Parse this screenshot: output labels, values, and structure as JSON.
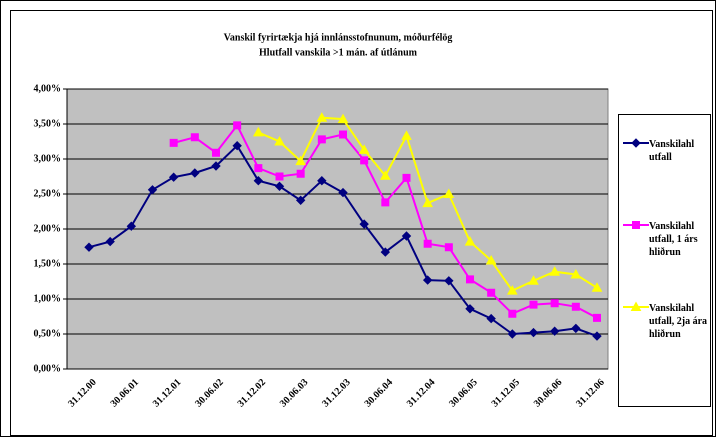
{
  "chart_data": {
    "type": "line",
    "title": "Vanskil fyrirtækja hjá innlánsstofnunum, móðurfélög",
    "subtitle": "Hlutfall vanskila >1 mán. af útlánum",
    "categories": [
      "31.12.00",
      null,
      "30.06.01",
      null,
      "31.12.01",
      null,
      "30.06.02",
      null,
      "31.12.02",
      null,
      "30.06.03",
      null,
      "31.12.03",
      null,
      "30.06.04",
      null,
      "31.12.04",
      null,
      "30.06.05",
      null,
      "31.12.05",
      null,
      "30.06.06",
      null,
      "31.12.06"
    ],
    "series": [
      {
        "name": "Vanskilahl utfall",
        "color": "#000080",
        "marker": "diamond",
        "values": [
          1.74,
          1.82,
          2.04,
          2.56,
          2.74,
          2.8,
          2.9,
          3.19,
          2.69,
          2.61,
          2.41,
          2.69,
          2.52,
          2.07,
          1.67,
          1.9,
          1.27,
          1.26,
          0.86,
          0.72,
          0.5,
          0.52,
          0.54,
          0.58,
          0.47
        ]
      },
      {
        "name": "Vanskilahl utfall, 1 árs hliðrun",
        "color": "#ff00ff",
        "marker": "square",
        "values": [
          null,
          null,
          null,
          null,
          3.23,
          3.31,
          3.09,
          3.48,
          2.87,
          2.75,
          2.79,
          3.28,
          3.35,
          2.98,
          2.38,
          2.73,
          1.79,
          1.74,
          1.28,
          1.09,
          0.79,
          0.92,
          0.94,
          0.89,
          0.73
        ]
      },
      {
        "name": "Vanskilahl utfall, 2ja ára hliðrun",
        "color": "#ffff00",
        "marker": "triangle",
        "values": [
          null,
          null,
          null,
          null,
          null,
          null,
          null,
          null,
          3.38,
          3.25,
          2.97,
          3.59,
          3.57,
          3.13,
          2.76,
          3.33,
          2.37,
          2.5,
          1.82,
          1.55,
          1.12,
          1.26,
          1.39,
          1.35,
          1.16
        ]
      }
    ],
    "ylim": [
      0,
      4
    ],
    "yticks": [
      {
        "value": 0,
        "label": "0,00%"
      },
      {
        "value": 0.5,
        "label": "0,50%"
      },
      {
        "value": 1,
        "label": "1,00%"
      },
      {
        "value": 1.5,
        "label": "1,50%"
      },
      {
        "value": 2,
        "label": "2,00%"
      },
      {
        "value": 2.5,
        "label": "2,50%"
      },
      {
        "value": 3,
        "label": "3,00%"
      },
      {
        "value": 3.5,
        "label": "3,50%"
      },
      {
        "value": 4,
        "label": "4,00%"
      }
    ],
    "grid": true,
    "plot_background": "#c0c0c0",
    "legend": "right"
  }
}
